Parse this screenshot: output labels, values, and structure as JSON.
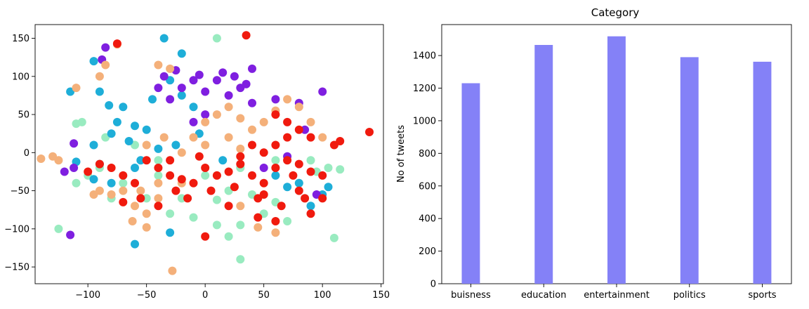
{
  "chart_data": [
    {
      "type": "scatter",
      "title": "",
      "xlabel": "",
      "ylabel": "",
      "xlim": [
        -145,
        152
      ],
      "ylim": [
        -172,
        168
      ],
      "xticks": [
        -100,
        -50,
        0,
        50,
        100,
        150
      ],
      "yticks": [
        -150,
        -100,
        -50,
        0,
        50,
        100,
        150
      ],
      "xtick_labels": [
        "−100",
        "−50",
        "0",
        "50",
        "100",
        "150"
      ],
      "ytick_labels": [
        "−150",
        "−100",
        "−50",
        "0",
        "50",
        "100",
        "150"
      ],
      "grid": false,
      "colors": {
        "purple": "#7f1fe0",
        "blue": "#1eaed8",
        "green": "#99ebc0",
        "orange": "#f4b07a",
        "red": "#f01a0e"
      },
      "series": [
        {
          "color": "#99ebc0",
          "points": [
            [
              20,
              -50
            ],
            [
              10,
              -62
            ],
            [
              40,
              -55
            ],
            [
              60,
              -65
            ],
            [
              80,
              -40
            ],
            [
              95,
              -25
            ],
            [
              105,
              -20
            ],
            [
              115,
              -22
            ],
            [
              -30,
              -80
            ],
            [
              -10,
              -85
            ],
            [
              10,
              -95
            ],
            [
              30,
              -95
            ],
            [
              -50,
              -60
            ],
            [
              -70,
              -40
            ],
            [
              -90,
              -20
            ],
            [
              -100,
              -30
            ],
            [
              -110,
              -40
            ],
            [
              -105,
              40
            ],
            [
              -110,
              38
            ],
            [
              -85,
              20
            ],
            [
              -60,
              10
            ],
            [
              -40,
              -10
            ],
            [
              0,
              -30
            ],
            [
              30,
              -20
            ],
            [
              60,
              -10
            ],
            [
              70,
              -90
            ],
            [
              20,
              -110
            ],
            [
              -125,
              -100
            ],
            [
              110,
              -112
            ],
            [
              30,
              -140
            ],
            [
              10,
              150
            ],
            [
              -40,
              -30
            ],
            [
              -20,
              -60
            ],
            [
              50,
              -80
            ],
            [
              85,
              -60
            ],
            [
              90,
              -10
            ],
            [
              -80,
              -60
            ]
          ]
        },
        {
          "color": "#1eaed8",
          "points": [
            [
              -70,
              60
            ],
            [
              -75,
              40
            ],
            [
              -60,
              35
            ],
            [
              -80,
              25
            ],
            [
              -65,
              15
            ],
            [
              -50,
              30
            ],
            [
              -45,
              70
            ],
            [
              -30,
              95
            ],
            [
              -20,
              75
            ],
            [
              -10,
              60
            ],
            [
              -95,
              10
            ],
            [
              -90,
              -15
            ],
            [
              -110,
              -12
            ],
            [
              -95,
              -35
            ],
            [
              -80,
              -40
            ],
            [
              -55,
              -10
            ],
            [
              -60,
              -20
            ],
            [
              -25,
              10
            ],
            [
              -5,
              25
            ],
            [
              15,
              -10
            ],
            [
              60,
              -30
            ],
            [
              70,
              -45
            ],
            [
              90,
              -70
            ],
            [
              105,
              -45
            ],
            [
              -82,
              62
            ],
            [
              -90,
              80
            ],
            [
              -95,
              120
            ],
            [
              -115,
              80
            ],
            [
              -35,
              150
            ],
            [
              -30,
              -105
            ],
            [
              -60,
              -120
            ],
            [
              -20,
              130
            ],
            [
              80,
              -40
            ],
            [
              100,
              -55
            ],
            [
              -40,
              5
            ]
          ]
        },
        {
          "color": "#7f1fe0",
          "points": [
            [
              -30,
              70
            ],
            [
              -20,
              85
            ],
            [
              -10,
              95
            ],
            [
              0,
              80
            ],
            [
              10,
              95
            ],
            [
              20,
              75
            ],
            [
              30,
              85
            ],
            [
              40,
              65
            ],
            [
              -40,
              85
            ],
            [
              -35,
              100
            ],
            [
              -25,
              108
            ],
            [
              -5,
              102
            ],
            [
              15,
              105
            ],
            [
              25,
              100
            ],
            [
              35,
              90
            ],
            [
              -120,
              -25
            ],
            [
              -112,
              -20
            ],
            [
              -112,
              12
            ],
            [
              -85,
              138
            ],
            [
              -88,
              122
            ],
            [
              40,
              110
            ],
            [
              60,
              70
            ],
            [
              80,
              65
            ],
            [
              100,
              80
            ],
            [
              95,
              -55
            ],
            [
              85,
              30
            ],
            [
              -115,
              -108
            ],
            [
              50,
              -20
            ],
            [
              70,
              -5
            ],
            [
              -10,
              40
            ],
            [
              0,
              50
            ]
          ]
        },
        {
          "color": "#f4b07a",
          "points": [
            [
              0,
              40
            ],
            [
              10,
              50
            ],
            [
              20,
              60
            ],
            [
              30,
              45
            ],
            [
              40,
              30
            ],
            [
              50,
              40
            ],
            [
              60,
              55
            ],
            [
              70,
              70
            ],
            [
              -10,
              20
            ],
            [
              0,
              10
            ],
            [
              -20,
              0
            ],
            [
              -35,
              20
            ],
            [
              -50,
              10
            ],
            [
              20,
              20
            ],
            [
              30,
              5
            ],
            [
              -40,
              -40
            ],
            [
              -55,
              -50
            ],
            [
              -70,
              -50
            ],
            [
              -80,
              -55
            ],
            [
              -60,
              -70
            ],
            [
              -50,
              -80
            ],
            [
              -40,
              -60
            ],
            [
              -90,
              -50
            ],
            [
              -95,
              -55
            ],
            [
              -130,
              -5
            ],
            [
              -140,
              -8
            ],
            [
              -125,
              -10
            ],
            [
              -62,
              -90
            ],
            [
              -50,
              -98
            ],
            [
              -75,
              142
            ],
            [
              -85,
              115
            ],
            [
              -90,
              100
            ],
            [
              -110,
              85
            ],
            [
              -28,
              -155
            ],
            [
              80,
              60
            ],
            [
              90,
              40
            ],
            [
              100,
              20
            ],
            [
              60,
              -105
            ],
            [
              45,
              -98
            ],
            [
              -40,
              115
            ],
            [
              -30,
              110
            ],
            [
              30,
              -70
            ],
            [
              -20,
              -40
            ],
            [
              10,
              -30
            ]
          ]
        },
        {
          "color": "#f01a0e",
          "points": [
            [
              0,
              -20
            ],
            [
              10,
              -30
            ],
            [
              20,
              -25
            ],
            [
              30,
              -15
            ],
            [
              40,
              -30
            ],
            [
              50,
              -40
            ],
            [
              60,
              -20
            ],
            [
              70,
              -10
            ],
            [
              80,
              -15
            ],
            [
              90,
              -25
            ],
            [
              100,
              -30
            ],
            [
              50,
              0
            ],
            [
              60,
              10
            ],
            [
              70,
              20
            ],
            [
              80,
              30
            ],
            [
              90,
              20
            ],
            [
              40,
              10
            ],
            [
              -10,
              -40
            ],
            [
              -20,
              -35
            ],
            [
              -30,
              -30
            ],
            [
              -40,
              -20
            ],
            [
              -50,
              -10
            ],
            [
              -60,
              -40
            ],
            [
              -70,
              -30
            ],
            [
              -80,
              -20
            ],
            [
              -90,
              -15
            ],
            [
              -100,
              -25
            ],
            [
              -25,
              -50
            ],
            [
              -15,
              -60
            ],
            [
              5,
              -50
            ],
            [
              25,
              -45
            ],
            [
              45,
              -60
            ],
            [
              65,
              -70
            ],
            [
              85,
              -60
            ],
            [
              100,
              -60
            ],
            [
              110,
              10
            ],
            [
              115,
              15
            ],
            [
              140,
              27
            ],
            [
              -75,
              143
            ],
            [
              35,
              154
            ],
            [
              80,
              -50
            ],
            [
              90,
              -80
            ],
            [
              60,
              -90
            ],
            [
              45,
              -85
            ],
            [
              0,
              -110
            ],
            [
              -40,
              -70
            ],
            [
              -70,
              -65
            ],
            [
              20,
              -70
            ],
            [
              30,
              -5
            ],
            [
              -5,
              -5
            ],
            [
              70,
              40
            ],
            [
              60,
              50
            ],
            [
              75,
              -30
            ],
            [
              50,
              -55
            ],
            [
              -55,
              -60
            ],
            [
              -30,
              -10
            ]
          ]
        }
      ]
    },
    {
      "type": "bar",
      "title": "Category",
      "xlabel": "",
      "ylabel": "No of tweets",
      "categories": [
        "buisness",
        "education",
        "entertainment",
        "politics",
        "sports"
      ],
      "values": [
        1230,
        1465,
        1518,
        1390,
        1362
      ],
      "ylim": [
        0,
        1590
      ],
      "yticks": [
        0,
        200,
        400,
        600,
        800,
        1000,
        1200,
        1400
      ],
      "bar_color": "#8481f7",
      "grid": false
    }
  ]
}
